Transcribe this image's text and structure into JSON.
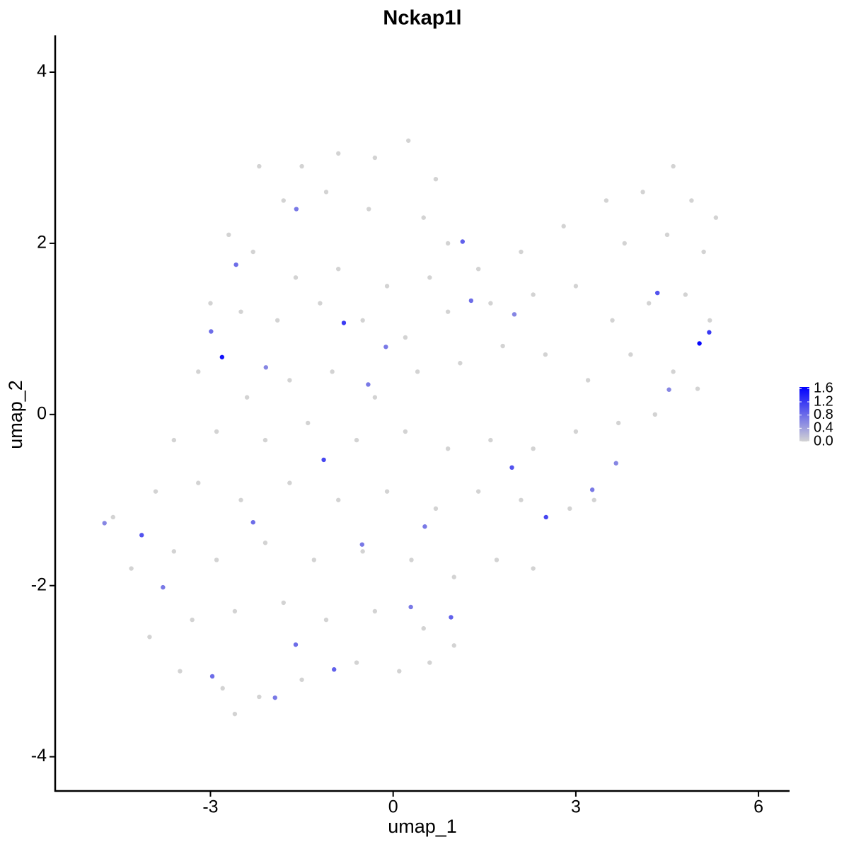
{
  "chart_data": {
    "type": "scatter",
    "title": "Nckap1l",
    "x_label": "umap_1",
    "y_label": "umap_2",
    "xlim": [
      -5.55,
      6.51
    ],
    "ylim": [
      -4.4,
      4.43
    ],
    "xticks": [
      -3,
      0,
      3,
      6
    ],
    "yticks": [
      -4,
      -2,
      0,
      2,
      4
    ],
    "low_color": "#d3d3d3",
    "high_color": "#0000ff",
    "colorbar_lim": [
      0,
      1.65
    ],
    "colorbar_ticks": [
      {
        "value": 0,
        "label": "0.0"
      },
      0.4,
      0.8,
      1.2,
      1.6
    ],
    "series": [
      {
        "x": [
          -2.2,
          -1.5,
          -0.9,
          -0.3,
          0.25,
          0.7,
          -1.8,
          -1.1,
          -0.4,
          0.5,
          0.9,
          -2.7,
          -2.3,
          -1.6,
          -0.9,
          -0.1,
          0.6,
          1.4,
          2.1,
          2.8,
          3.5,
          4.1,
          4.6,
          4.9,
          5.3,
          5.1,
          4.5,
          3.8,
          -3.0,
          -2.5,
          -1.9,
          -1.2,
          -0.5,
          0.2,
          0.9,
          1.6,
          2.3,
          3.0,
          3.6,
          4.2,
          4.8,
          5.2,
          -3.2,
          -2.4,
          -1.7,
          -1.0,
          -0.3,
          0.4,
          1.1,
          1.8,
          2.5,
          3.2,
          3.9,
          4.6,
          5.0,
          -3.6,
          -2.9,
          -2.1,
          -1.4,
          -0.6,
          0.2,
          0.9,
          1.6,
          2.3,
          3.0,
          3.7,
          4.3,
          -3.9,
          -3.2,
          -2.5,
          -1.7,
          -0.9,
          -0.1,
          0.7,
          1.4,
          2.1,
          2.9,
          3.3,
          -4.6,
          -4.3,
          -3.6,
          -2.9,
          -2.1,
          -1.3,
          -0.5,
          0.3,
          1.0,
          1.7,
          2.3,
          -4.0,
          -3.3,
          -2.6,
          -1.8,
          -1.1,
          -0.3,
          0.5,
          1.0,
          -3.5,
          -2.8,
          -2.2,
          -2.6,
          -1.5,
          -0.6,
          0.1,
          0.6,
          -2.81,
          5.03,
          5.19,
          -0.81,
          -1.14,
          -4.13,
          2.51,
          4.34,
          1.95,
          1.14,
          -2.58,
          -2.99,
          -0.97,
          0.95,
          -1.6,
          -2.97,
          -2.3,
          0.52,
          -0.41,
          -1.59,
          -0.12,
          3.66,
          1.28,
          -3.78,
          -1.94,
          -4.74,
          3.27,
          1.99,
          -0.51,
          0.29,
          -2.09,
          4.53
        ],
        "values": [
          2.9,
          2.9,
          3.05,
          3.0,
          3.2,
          2.75,
          2.5,
          2.6,
          2.4,
          2.3,
          2.0,
          2.1,
          1.9,
          1.6,
          1.7,
          1.5,
          1.6,
          1.7,
          1.9,
          2.2,
          2.5,
          2.6,
          2.9,
          2.5,
          2.3,
          1.9,
          2.1,
          2.0,
          1.3,
          1.2,
          1.1,
          1.3,
          1.1,
          0.9,
          1.2,
          1.3,
          1.4,
          1.5,
          1.1,
          1.3,
          1.4,
          1.1,
          0.5,
          0.2,
          0.4,
          0.5,
          0.2,
          0.5,
          0.6,
          0.8,
          0.7,
          0.4,
          0.7,
          0.5,
          0.3,
          -0.3,
          -0.2,
          -0.3,
          -0.1,
          -0.3,
          -0.2,
          -0.4,
          -0.3,
          -0.4,
          -0.2,
          -0.1,
          0,
          -0.9,
          -0.8,
          -1.0,
          -0.8,
          -1.0,
          -0.9,
          -1.1,
          -0.9,
          -1.0,
          -1.1,
          -1.0,
          -1.2,
          -1.8,
          -1.6,
          -1.7,
          -1.5,
          -1.7,
          -1.6,
          -1.7,
          -1.9,
          -1.7,
          -1.8,
          -2.6,
          -2.4,
          -2.3,
          -2.2,
          -2.4,
          -2.3,
          -2.5,
          -2.7,
          -3.0,
          -3.2,
          -3.3,
          -3.5,
          -3.1,
          -2.9,
          -3.0,
          -2.9,
          0.67,
          0.83,
          0.96,
          1.07,
          -0.53,
          -1.41,
          -1.2,
          1.42,
          -0.62,
          2.02,
          1.75,
          0.97,
          -2.98,
          -2.37,
          -2.69,
          -3.06,
          -1.26,
          -1.31,
          0.35,
          2.4,
          0.79,
          -0.57,
          1.33,
          -2.02,
          -3.31,
          -1.27,
          -0.88,
          1.17,
          -1.52,
          -2.25,
          0.55,
          0.29
        ],
        "expression": [
          0,
          0,
          0,
          0,
          0,
          0,
          0,
          0,
          0,
          0,
          0,
          0,
          0,
          0,
          0,
          0,
          0,
          0,
          0,
          0,
          0,
          0,
          0,
          0,
          0,
          0,
          0,
          0,
          0,
          0,
          0,
          0,
          0,
          0,
          0,
          0,
          0,
          0,
          0,
          0,
          0,
          0,
          0,
          0,
          0,
          0,
          0,
          0,
          0,
          0,
          0,
          0,
          0,
          0,
          0,
          0,
          0,
          0,
          0,
          0,
          0,
          0,
          0,
          0,
          0,
          0,
          0,
          0,
          0,
          0,
          0,
          0,
          0,
          0,
          0,
          0,
          0,
          0,
          0,
          0,
          0,
          0,
          0,
          0,
          0,
          0,
          0,
          0,
          0,
          0,
          0,
          0,
          0,
          0,
          0,
          0,
          0,
          0,
          0,
          0,
          0,
          0,
          0,
          0,
          0,
          1.5,
          1.6,
          1.2,
          1.2,
          1.1,
          1.0,
          1.1,
          1.0,
          1.0,
          0.9,
          0.8,
          0.8,
          0.9,
          0.9,
          0.8,
          0.8,
          0.8,
          0.7,
          0.7,
          0.7,
          0.7,
          0.6,
          0.8,
          0.7,
          0.7,
          0.6,
          0.7,
          0.6,
          0.7,
          0.7,
          0.6,
          0.6
        ]
      }
    ]
  }
}
